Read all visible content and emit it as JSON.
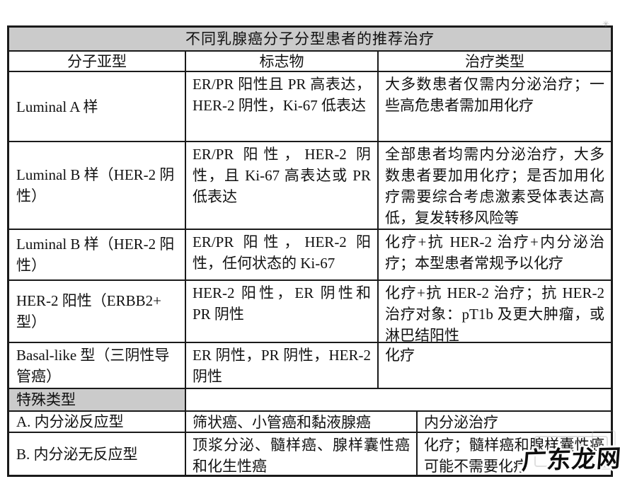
{
  "table": {
    "title": "不同乳腺癌分子分型患者的推荐治疗",
    "columns": [
      "分子亚型",
      "标志物",
      "治疗类型"
    ],
    "rows": [
      {
        "subtype": "Luminal A 样",
        "markers": "ER/PR 阳性且 PR 高表达，HER-2 阴性，Ki-67 低表达",
        "treatment": "大多数患者仅需内分泌治疗；一些高危患者需加用化疗"
      },
      {
        "subtype": "Luminal B 样（HER-2 阴性）",
        "markers": "ER/PR 阳性，HER-2 阴性，且 Ki-67 高表达或 PR 低表达",
        "treatment": "全部患者均需内分泌治疗，大多数患者要加用化疗；是否加用化疗需要综合考虑激素受体表达高低，复发转移风险等"
      },
      {
        "subtype": "Luminal B 样（HER-2 阳性）",
        "markers": "ER/PR 阳性，HER-2 阳性，任何状态的 Ki-67",
        "treatment": "化疗+抗 HER-2 治疗+内分泌治疗；本型患者常规予以化疗"
      },
      {
        "subtype": "HER-2 阳性（ERBB2+ 型）",
        "markers": "HER-2 阳性，ER 阴性和 PR 阴性",
        "treatment": "化疗+抗 HER-2 治疗；抗 HER-2 治疗对象：pT1b 及更大肿瘤，或淋巴结阳性"
      },
      {
        "subtype": "Basal-like 型（三阴性导管癌）",
        "markers": "ER 阴性，PR 阴性，HER-2 阴性",
        "treatment": "化疗"
      }
    ],
    "special_section": {
      "label": "特殊类型",
      "rows": [
        {
          "subtype": "A. 内分泌反应型",
          "markers": "筛状癌、小管癌和黏液腺癌",
          "treatment": "内分泌治疗"
        },
        {
          "subtype": "B. 内分泌无反应型",
          "markers": "顶浆分泌、髓样癌、腺样囊性癌和化生性癌",
          "treatment": "化疗；髓样癌和腺样囊性癌可能不需要化疗"
        }
      ]
    }
  },
  "watermark": {
    "text": "广东龙网"
  },
  "colors": {
    "header_bg": "#cbcbcb",
    "border": "#1a1a1a",
    "text": "#111111",
    "watermark": "#0d0d0d"
  }
}
